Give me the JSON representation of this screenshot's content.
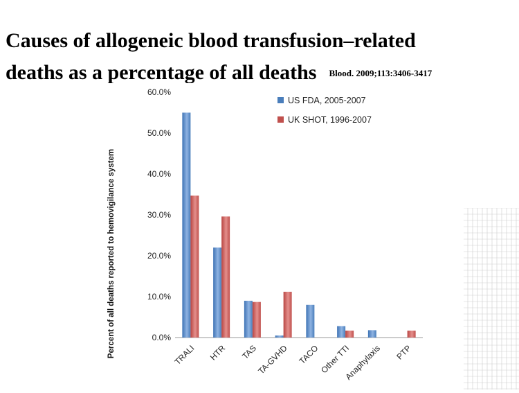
{
  "slide": {
    "title_line1": "Causes of allogeneic blood transfusion–related",
    "title_line2": "deaths as a percentage  of all deaths",
    "citation": "Blood. 2009;113:3406-3417"
  },
  "chart_data": {
    "type": "bar",
    "title": "",
    "xlabel": "",
    "ylabel": "Percent of all deaths reported to hemovigilance system",
    "categories": [
      "TRALI",
      "HTR",
      "TAS",
      "TA-GVHD",
      "TACO",
      "Other TTI",
      "Anaphylaxis",
      "PTP"
    ],
    "series": [
      {
        "name": "US FDA, 2005-2007",
        "color": "#4a7ebb",
        "values": [
          55.0,
          22.0,
          9.0,
          0.5,
          8.0,
          2.8,
          1.8,
          0.0
        ]
      },
      {
        "name": "UK SHOT, 1996-2007",
        "color": "#c0504d",
        "values": [
          34.7,
          29.6,
          8.7,
          11.2,
          0.0,
          1.7,
          0.0,
          1.7
        ]
      }
    ],
    "ylim": [
      0,
      60
    ],
    "yticks": [
      "0.0%",
      "10.0%",
      "20.0%",
      "30.0%",
      "40.0%",
      "50.0%",
      "60.0%"
    ],
    "grid": false,
    "legend_position": "top-right"
  }
}
